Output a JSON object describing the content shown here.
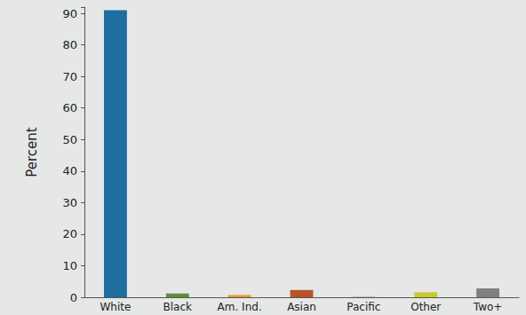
{
  "chart_data": {
    "type": "bar",
    "y_label": "Percent",
    "categories": [
      "White",
      "Black",
      "Am. Ind.",
      "Asian",
      "Pacific",
      "Other",
      "Two+"
    ],
    "values": [
      91,
      1.2,
      0.7,
      2.3,
      0.1,
      1.6,
      2.8
    ],
    "colors": [
      "#1f6e9f",
      "#5e8f35",
      "#e19a2a",
      "#b8532a",
      "#8a5fa8",
      "#c9c92c",
      "#7f7f7f"
    ],
    "ylim": [
      0,
      92
    ],
    "yticks": [
      0,
      10,
      20,
      30,
      40,
      50,
      60,
      70,
      80,
      90
    ],
    "grid": false
  }
}
